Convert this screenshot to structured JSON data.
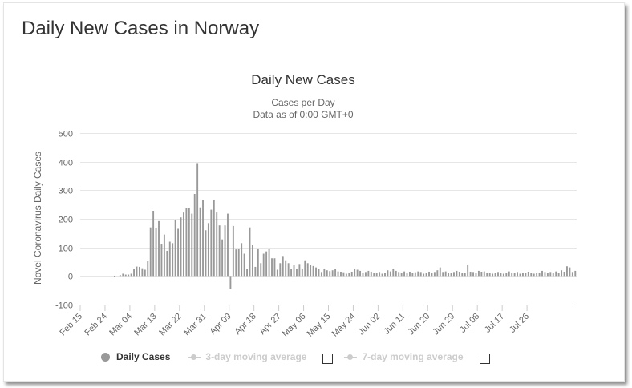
{
  "page": {
    "title": "Daily New Cases in Norway"
  },
  "chart_data": {
    "type": "bar",
    "title": "Daily New Cases",
    "subtitle_lines": [
      "Cases per Day",
      "Data as of 0:00 GMT+0"
    ],
    "ylabel": "Novel Coronavirus Daily Cases",
    "xlabel": "",
    "ylim": [
      -100,
      500
    ],
    "yticks": [
      500,
      400,
      300,
      200,
      100,
      0,
      -100
    ],
    "x_tick_labels": [
      "Feb 15",
      "Feb 24",
      "Mar 04",
      "Mar 13",
      "Mar 22",
      "Mar 31",
      "Apr 09",
      "Apr 18",
      "Apr 27",
      "May 06",
      "May 15",
      "May 24",
      "Jun 02",
      "Jun 11",
      "Jun 20",
      "Jun 29",
      "Jul 08",
      "Jul 17",
      "Jul 26"
    ],
    "x_start": "Feb 15",
    "grid": true,
    "bar_color": "#999999",
    "series": [
      {
        "name": "Daily Cases",
        "values": [
          0,
          0,
          0,
          0,
          0,
          0,
          0,
          0,
          0,
          0,
          0,
          0,
          1,
          0,
          3,
          8,
          5,
          5,
          8,
          25,
          33,
          32,
          27,
          22,
          52,
          170,
          228,
          167,
          192,
          113,
          145,
          88,
          120,
          115,
          196,
          165,
          205,
          222,
          237,
          237,
          218,
          287,
          395,
          240,
          265,
          160,
          185,
          232,
          265,
          222,
          177,
          128,
          177,
          218,
          -45,
          175,
          93,
          95,
          115,
          78,
          25,
          170,
          110,
          32,
          95,
          45,
          78,
          86,
          95,
          62,
          62,
          22,
          45,
          70,
          55,
          45,
          25,
          40,
          25,
          42,
          25,
          55,
          45,
          38,
          35,
          30,
          25,
          14,
          25,
          20,
          17,
          20,
          25,
          16,
          15,
          13,
          8,
          12,
          15,
          25,
          22,
          18,
          10,
          14,
          18,
          15,
          12,
          12,
          14,
          8,
          11,
          20,
          16,
          25,
          18,
          14,
          12,
          16,
          11,
          15,
          12,
          13,
          16,
          14,
          8,
          12,
          15,
          11,
          14,
          20,
          30,
          14,
          16,
          12,
          10,
          14,
          18,
          15,
          10,
          12,
          40,
          15,
          14,
          10,
          18,
          15,
          16,
          10,
          12,
          8,
          10,
          14,
          12,
          8,
          12,
          16,
          12,
          10,
          14,
          8,
          10,
          12,
          15,
          10,
          8,
          10,
          12,
          18,
          14,
          11,
          14,
          10,
          16,
          12,
          20,
          15,
          34,
          30,
          14,
          18
        ]
      }
    ],
    "legend": {
      "position": "bottom",
      "items": [
        {
          "label": "Daily Cases",
          "active": true
        },
        {
          "label": "3-day moving average",
          "active": false
        },
        {
          "label": "7-day moving average",
          "active": false
        }
      ]
    }
  }
}
